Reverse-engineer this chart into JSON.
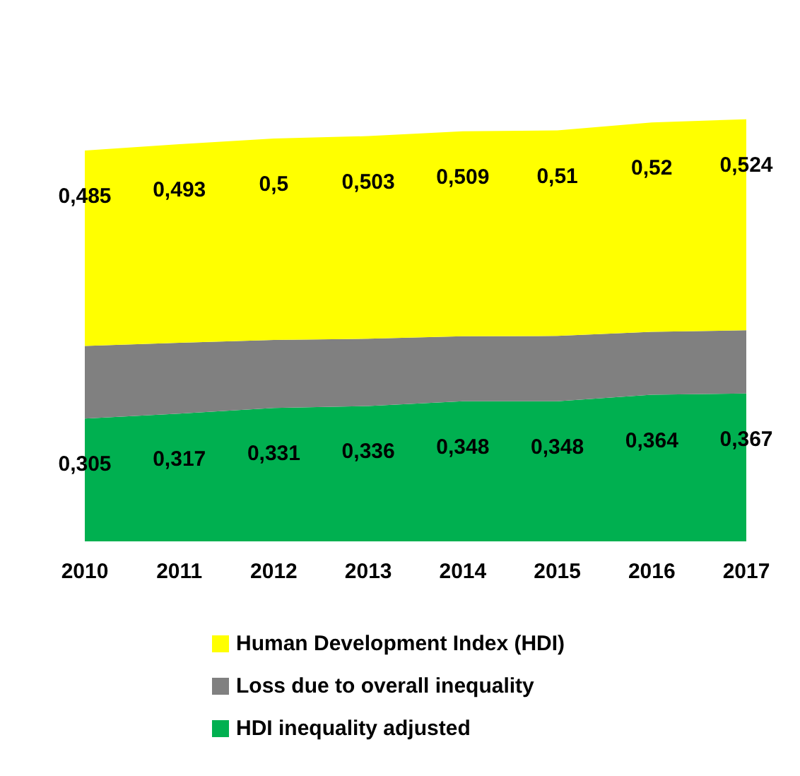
{
  "chart_data": {
    "type": "area",
    "stacked": true,
    "categories": [
      "2010",
      "2011",
      "2012",
      "2013",
      "2014",
      "2015",
      "2016",
      "2017"
    ],
    "series": [
      {
        "name": "HDI inequality adjusted",
        "color": "#00b050",
        "values": [
          0.305,
          0.317,
          0.331,
          0.336,
          0.348,
          0.348,
          0.364,
          0.367
        ],
        "value_labels": [
          "0,305",
          "0,317",
          "0,331",
          "0,336",
          "0,348",
          "0,348",
          "0,364",
          "0,367"
        ]
      },
      {
        "name": "Loss due to overall inequality",
        "color": "#808080",
        "values": [
          0.18,
          0.176,
          0.169,
          0.167,
          0.161,
          0.162,
          0.156,
          0.157
        ]
      },
      {
        "name": "Human Development Index (HDI)",
        "color": "#ffff00",
        "values": [
          0.485,
          0.493,
          0.5,
          0.503,
          0.509,
          0.51,
          0.52,
          0.524
        ],
        "value_labels": [
          "0,485",
          "0,493",
          "0,5",
          "0,503",
          "0,509",
          "0,51",
          "0,52",
          "0,524"
        ]
      }
    ],
    "legend": "bottom",
    "tick_labels": "x"
  }
}
